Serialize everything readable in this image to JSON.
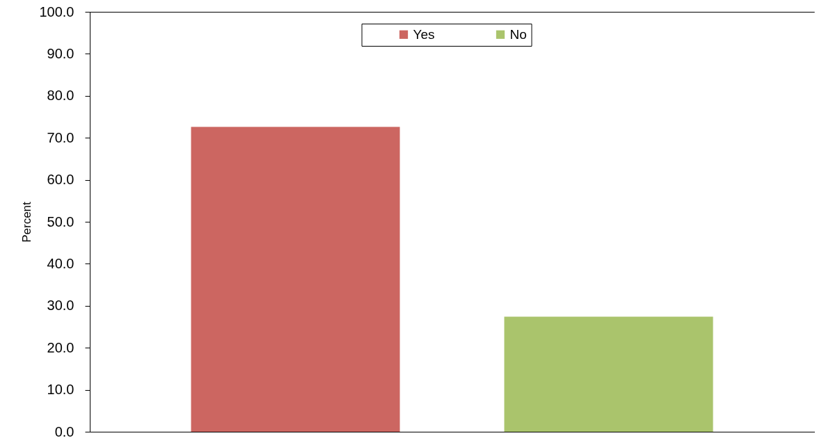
{
  "chart_data": {
    "type": "bar",
    "ylabel": "Percent",
    "categories": [
      null
    ],
    "series": [
      {
        "name": "Yes",
        "color": "#cc6661",
        "values": [
          72.6
        ]
      },
      {
        "name": "No",
        "color": "#aac46c",
        "values": [
          27.4
        ]
      }
    ],
    "ylim": [
      0,
      100
    ],
    "yticks": [
      {
        "value": 0,
        "label": "0.0"
      },
      {
        "value": 10,
        "label": "10.0"
      },
      {
        "value": 20,
        "label": "20.0"
      },
      {
        "value": 30,
        "label": "30.0"
      },
      {
        "value": 40,
        "label": "40.0"
      },
      {
        "value": 50,
        "label": "50.0"
      },
      {
        "value": 60,
        "label": "60.0"
      },
      {
        "value": 70,
        "label": "70.0"
      },
      {
        "value": 80,
        "label": "80.0"
      },
      {
        "value": 90,
        "label": "90.0"
      },
      {
        "value": 100,
        "label": "100.0"
      }
    ],
    "grid": false,
    "legend": "top"
  }
}
